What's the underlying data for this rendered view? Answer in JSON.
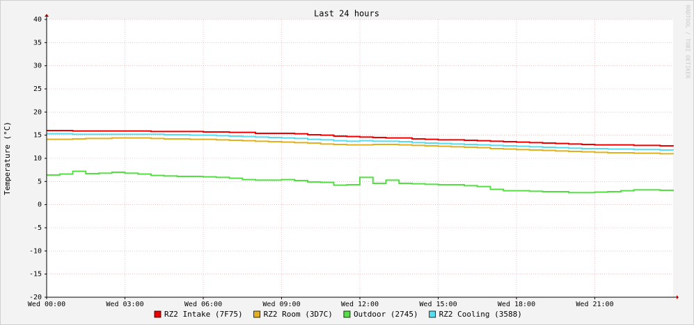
{
  "chart_data": {
    "type": "line",
    "title": "Last 24 hours",
    "y_label": "Temperature (°C)",
    "watermark": "RRDTOOL / TOBI OETIKER",
    "x": [
      0,
      0.5,
      1,
      1.5,
      2,
      2.5,
      3,
      3.5,
      4,
      4.5,
      5,
      5.5,
      6,
      6.5,
      7,
      7.5,
      8,
      8.5,
      9,
      9.5,
      10,
      10.5,
      11,
      11.5,
      12,
      12.5,
      13,
      13.5,
      14,
      14.5,
      15,
      15.5,
      16,
      16.5,
      17,
      17.5,
      18,
      18.5,
      19,
      19.5,
      20,
      20.5,
      21,
      21.5,
      22,
      22.5,
      23,
      23.5,
      24
    ],
    "xlim": [
      0,
      24
    ],
    "xticks": [
      {
        "value": 0,
        "label": "Wed 00:00"
      },
      {
        "value": 3,
        "label": "Wed 03:00"
      },
      {
        "value": 6,
        "label": "Wed 06:00"
      },
      {
        "value": 9,
        "label": "Wed 09:00"
      },
      {
        "value": 12,
        "label": "Wed 12:00"
      },
      {
        "value": 15,
        "label": "Wed 15:00"
      },
      {
        "value": 18,
        "label": "Wed 18:00"
      },
      {
        "value": 21,
        "label": "Wed 21:00"
      }
    ],
    "ylim": [
      -20,
      40
    ],
    "yticks": [
      -20,
      -15,
      -10,
      -5,
      0,
      5,
      10,
      15,
      20,
      25,
      30,
      35,
      40
    ],
    "grid": true,
    "series": [
      {
        "name": "RZ2 Intake (7F75)",
        "color": "#ee0000",
        "values": [
          16.0,
          16.0,
          15.9,
          15.9,
          15.9,
          15.9,
          15.9,
          15.9,
          15.8,
          15.8,
          15.8,
          15.8,
          15.7,
          15.7,
          15.6,
          15.6,
          15.4,
          15.4,
          15.4,
          15.3,
          15.1,
          15.0,
          14.8,
          14.7,
          14.6,
          14.5,
          14.4,
          14.4,
          14.2,
          14.1,
          14.0,
          14.0,
          13.9,
          13.8,
          13.7,
          13.6,
          13.5,
          13.4,
          13.3,
          13.2,
          13.1,
          13.0,
          12.9,
          12.9,
          12.9,
          12.8,
          12.8,
          12.7,
          12.6
        ]
      },
      {
        "name": "RZ2 Room (3D7C)",
        "color": "#e0b020",
        "values": [
          14.1,
          14.1,
          14.2,
          14.3,
          14.3,
          14.4,
          14.4,
          14.4,
          14.3,
          14.2,
          14.2,
          14.1,
          14.1,
          14.0,
          13.9,
          13.8,
          13.7,
          13.6,
          13.5,
          13.4,
          13.3,
          13.1,
          13.0,
          12.9,
          12.9,
          13.0,
          13.0,
          12.9,
          12.8,
          12.7,
          12.6,
          12.5,
          12.4,
          12.3,
          12.1,
          12.0,
          11.9,
          11.8,
          11.7,
          11.6,
          11.5,
          11.4,
          11.3,
          11.2,
          11.2,
          11.1,
          11.1,
          11.0,
          10.9
        ]
      },
      {
        "name": "Outdoor (2745)",
        "color": "#55dd44",
        "values": [
          6.4,
          6.6,
          7.2,
          6.7,
          6.8,
          7.0,
          6.8,
          6.6,
          6.3,
          6.2,
          6.1,
          6.1,
          6.0,
          5.9,
          5.7,
          5.4,
          5.3,
          5.3,
          5.4,
          5.2,
          4.9,
          4.8,
          4.2,
          4.3,
          5.9,
          4.6,
          5.3,
          4.6,
          4.5,
          4.4,
          4.3,
          4.3,
          4.1,
          3.9,
          3.3,
          3.0,
          3.0,
          2.9,
          2.8,
          2.8,
          2.6,
          2.6,
          2.7,
          2.8,
          3.0,
          3.2,
          3.2,
          3.1,
          2.9
        ]
      },
      {
        "name": "RZ2 Cooling (3588)",
        "color": "#55ddee",
        "values": [
          15.3,
          15.3,
          15.2,
          15.2,
          15.2,
          15.2,
          15.2,
          15.2,
          15.2,
          15.1,
          15.1,
          15.0,
          15.0,
          14.9,
          14.8,
          14.7,
          14.6,
          14.5,
          14.4,
          14.3,
          14.1,
          14.0,
          13.8,
          13.7,
          13.8,
          13.7,
          13.7,
          13.6,
          13.4,
          13.3,
          13.2,
          13.1,
          13.0,
          12.9,
          12.8,
          12.7,
          12.6,
          12.5,
          12.4,
          12.3,
          12.2,
          12.1,
          12.1,
          12.0,
          12.0,
          11.9,
          11.9,
          11.8,
          11.7
        ]
      }
    ]
  }
}
